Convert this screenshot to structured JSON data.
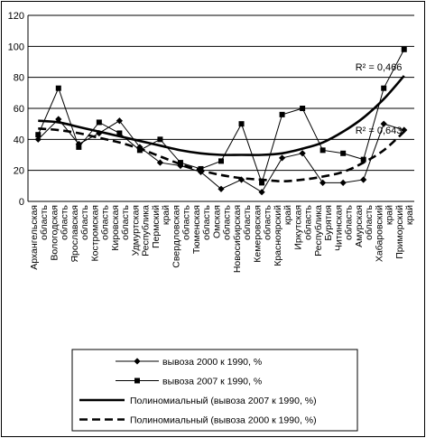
{
  "chart_data": {
    "type": "line",
    "categories": [
      "Архангельская область",
      "Вологодская область",
      "Ярославская область",
      "Костромская область",
      "Кировская область",
      "Удмуртская Республика",
      "Пермский край",
      "Свердловская область",
      "Тюменская область",
      "Омская область",
      "Новосибирская область",
      "Кемеровская область",
      "Красноярский край",
      "Иркутская область",
      "Республика Бурятия",
      "Читинская область",
      "Амурская область",
      "Хабаровский край",
      "Приморский край"
    ],
    "series": [
      {
        "name": "вывоза 2000 к 1990, %",
        "marker": "diamond",
        "color": "#000000",
        "values": [
          40,
          53,
          37,
          44,
          52,
          35,
          25,
          23,
          19,
          8,
          14,
          6,
          28,
          31,
          12,
          12,
          14,
          50,
          46
        ]
      },
      {
        "name": "вывоза 2007 к 1990, %",
        "marker": "square",
        "color": "#000000",
        "values": [
          43,
          73,
          35,
          51,
          44,
          33,
          40,
          25,
          21,
          26,
          50,
          12,
          56,
          60,
          33,
          31,
          27,
          73,
          98
        ]
      },
      {
        "name": "Полиномиальный (вывоза 2007 к 1990, %)",
        "style": "solid-thick",
        "color": "#000000",
        "values": [
          52,
          51,
          48,
          45,
          42,
          39,
          36,
          33,
          31,
          30,
          30,
          30,
          31,
          34,
          38,
          45,
          54,
          66,
          81
        ]
      },
      {
        "name": "Полиномиальный (вывоза 2000 к 1990, %)",
        "style": "dashed-thick",
        "color": "#000000",
        "values": [
          47,
          46,
          44,
          41,
          38,
          34,
          29,
          24,
          20,
          17,
          15,
          14,
          13,
          14,
          16,
          19,
          25,
          33,
          45
        ]
      }
    ],
    "annotations": [
      {
        "text": "R² = 0,466",
        "series_index": 2,
        "at": "end"
      },
      {
        "text": "R² = 0,643",
        "series_index": 3,
        "at": "end"
      }
    ],
    "ylim": [
      0,
      120
    ],
    "yticks": [
      0,
      20,
      40,
      60,
      80,
      100,
      120
    ],
    "grid": true,
    "legend_position": "bottom"
  }
}
